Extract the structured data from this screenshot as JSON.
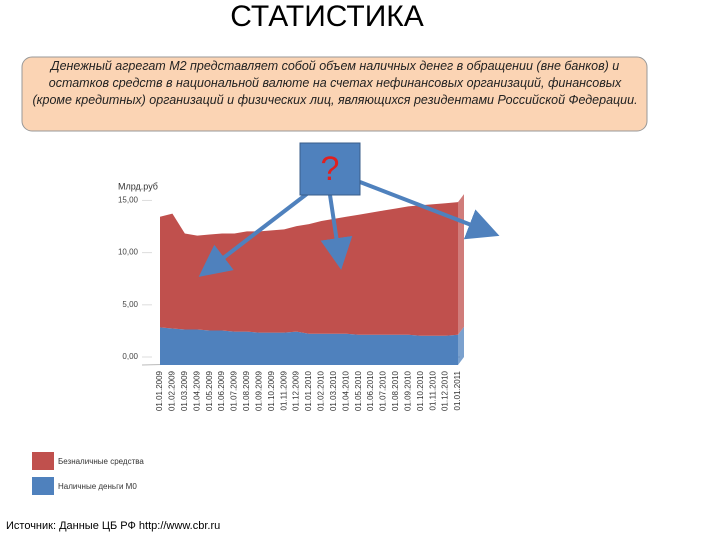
{
  "title": "СТАТИСТИКА",
  "info": "Денежный агрегат М2 представляет собой объем наличных денег в обращении (вне банков) и остатков средств в национальной валюте на счетах нефинансовых организаций, финансовых (кроме кредитных) организаций и физических лиц, являющихся резидентами Российской Федерации.",
  "callout": "?",
  "source": "Источник: Данные ЦБ РФ http://www.cbr.ru",
  "chart_data": {
    "type": "stacked_area",
    "y_label": "Млрд.руб",
    "categories": [
      "01.01.2009",
      "01.02.2009",
      "01.03.2009",
      "01.04.2009",
      "01.05.2009",
      "01.06.2009",
      "01.07.2009",
      "01.08.2009",
      "01.09.2009",
      "01.10.2009",
      "01.11.2009",
      "01.12.2009",
      "01.01.2010",
      "01.02.2010",
      "01.03.2010",
      "01.04.2010",
      "01.05.2010",
      "01.06.2010",
      "01.07.2010",
      "01.08.2010",
      "01.09.2010",
      "01.10.2010",
      "01.11.2010",
      "01.12.2010",
      "01.01.2011"
    ],
    "series": [
      {
        "name": "Наличные деньги М0",
        "color": "#4f81bd",
        "values": [
          3.6,
          3.5,
          3.4,
          3.4,
          3.3,
          3.3,
          3.2,
          3.2,
          3.1,
          3.1,
          3.1,
          3.2,
          3.0,
          3.0,
          3.0,
          3.0,
          2.9,
          2.9,
          2.9,
          2.9,
          2.9,
          2.8,
          2.8,
          2.8,
          2.9
        ]
      },
      {
        "name": "Безналичные средства",
        "color": "#c0504d",
        "values": [
          10.6,
          11.0,
          9.2,
          9.0,
          9.2,
          9.3,
          9.4,
          9.6,
          9.7,
          9.8,
          9.9,
          10.1,
          10.5,
          10.8,
          11.0,
          11.2,
          11.5,
          11.7,
          11.9,
          12.1,
          12.3,
          12.5,
          12.6,
          12.7,
          12.7
        ]
      }
    ],
    "ylim": [
      0,
      16
    ],
    "yticks": [
      {
        "value": 0,
        "label": "0,00"
      },
      {
        "value": 5,
        "label": "5,00"
      },
      {
        "value": 10,
        "label": "10,00"
      },
      {
        "value": 15,
        "label": "15,00"
      }
    ]
  }
}
